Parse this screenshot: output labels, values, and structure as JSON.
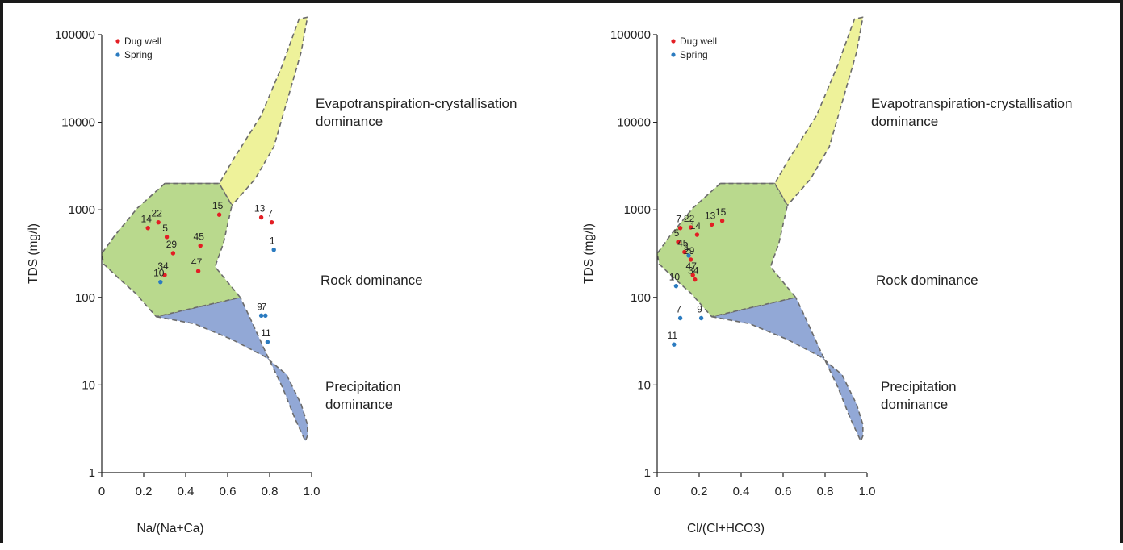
{
  "colors": {
    "dug_well": "#e31e24",
    "spring": "#2b7bc0",
    "evaporation_fill": "#eef29a",
    "rock_fill": "#b9d98d",
    "precipitation_fill": "#92a8d6",
    "boundary": "#6b6b6b"
  },
  "legend": [
    {
      "key": "dug_well",
      "label": "Dug well"
    },
    {
      "key": "spring",
      "label": "Spring"
    }
  ],
  "chart_data": [
    {
      "type": "scatter",
      "xlabel": "Na/(Na+Ca)",
      "ylabel": "TDS (mg/l)",
      "xlim": [
        0,
        1.0
      ],
      "ylim": [
        1,
        100000
      ],
      "yscale": "log",
      "x_ticks": [
        "0",
        "0.2",
        "0.4",
        "0.6",
        "0.8",
        "1.0"
      ],
      "y_ticks": [
        "1",
        "10",
        "100",
        "1000",
        "10000",
        "100000"
      ],
      "legend_position": "top-left",
      "regions": [
        {
          "name": "Evapotranspiration-crystallisation",
          "label_lines": [
            "Evapotranspiration-crystallisation",
            "dominance"
          ]
        },
        {
          "name": "Rock",
          "label_lines": [
            "Rock dominance"
          ]
        },
        {
          "name": "Precipitation",
          "label_lines": [
            "Precipitation",
            "dominance"
          ]
        }
      ],
      "series": [
        {
          "name": "Dug well",
          "key": "dug_well",
          "points": [
            {
              "label": "15",
              "x": 0.56,
              "y": 880
            },
            {
              "label": "13",
              "x": 0.76,
              "y": 820
            },
            {
              "label": "7",
              "x": 0.81,
              "y": 720
            },
            {
              "label": "22",
              "x": 0.27,
              "y": 720
            },
            {
              "label": "14",
              "x": 0.22,
              "y": 620
            },
            {
              "label": "5",
              "x": 0.31,
              "y": 490
            },
            {
              "label": "45",
              "x": 0.47,
              "y": 390
            },
            {
              "label": "29",
              "x": 0.34,
              "y": 320
            },
            {
              "label": "47",
              "x": 0.46,
              "y": 200
            },
            {
              "label": "34",
              "x": 0.3,
              "y": 180
            }
          ]
        },
        {
          "name": "Spring",
          "key": "spring",
          "points": [
            {
              "label": "1",
              "x": 0.82,
              "y": 350
            },
            {
              "label": "10",
              "x": 0.28,
              "y": 150
            },
            {
              "label": "9",
              "x": 0.76,
              "y": 62
            },
            {
              "label": "7",
              "x": 0.78,
              "y": 62
            },
            {
              "label": "11",
              "x": 0.79,
              "y": 31
            }
          ]
        }
      ]
    },
    {
      "type": "scatter",
      "xlabel": "Cl/(Cl+HCO3)",
      "ylabel": "TDS (mg/l)",
      "xlim": [
        0,
        1.0
      ],
      "ylim": [
        1,
        100000
      ],
      "yscale": "log",
      "x_ticks": [
        "0",
        "0.2",
        "0.4",
        "0.6",
        "0.8",
        "1.0"
      ],
      "y_ticks": [
        "1",
        "10",
        "100",
        "1000",
        "10000",
        "100000"
      ],
      "legend_position": "top-left",
      "regions": [
        {
          "name": "Evapotranspiration-crystallisation",
          "label_lines": [
            "Evapotranspiration-crystallisation",
            "dominance"
          ]
        },
        {
          "name": "Rock",
          "label_lines": [
            "Rock dominance"
          ]
        },
        {
          "name": "Precipitation",
          "label_lines": [
            "Precipitation",
            "dominance"
          ]
        }
      ],
      "series": [
        {
          "name": "Dug well",
          "key": "dug_well",
          "points": [
            {
              "label": "15",
              "x": 0.31,
              "y": 750
            },
            {
              "label": "13",
              "x": 0.26,
              "y": 680
            },
            {
              "label": "7",
              "x": 0.11,
              "y": 620
            },
            {
              "label": "22",
              "x": 0.16,
              "y": 630
            },
            {
              "label": "14",
              "x": 0.19,
              "y": 520
            },
            {
              "label": "5",
              "x": 0.1,
              "y": 430
            },
            {
              "label": "45",
              "x": 0.13,
              "y": 330
            },
            {
              "label": "29",
              "x": 0.16,
              "y": 270
            },
            {
              "label": "47",
              "x": 0.17,
              "y": 180
            },
            {
              "label": "34",
              "x": 0.18,
              "y": 160
            }
          ]
        },
        {
          "name": "Spring",
          "key": "spring",
          "points": [
            {
              "label": "1",
              "x": 0.15,
              "y": 300
            },
            {
              "label": "10",
              "x": 0.09,
              "y": 135
            },
            {
              "label": "7",
              "x": 0.11,
              "y": 58
            },
            {
              "label": "9",
              "x": 0.21,
              "y": 58
            },
            {
              "label": "11",
              "x": 0.08,
              "y": 29
            }
          ]
        }
      ]
    }
  ]
}
